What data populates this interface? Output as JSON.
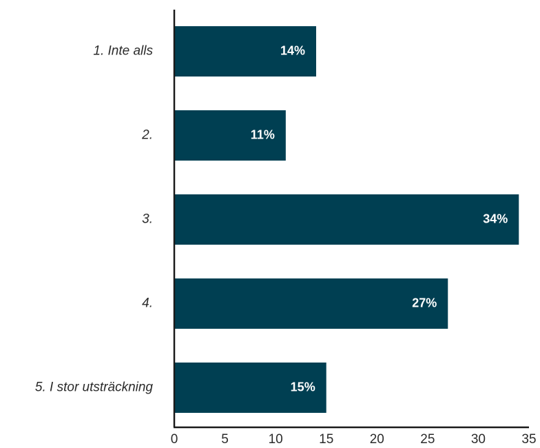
{
  "chart_data": {
    "type": "bar",
    "orientation": "horizontal",
    "categories": [
      "1. Inte alls",
      "2.",
      "3.",
      "4.",
      "5. I stor utsträckning"
    ],
    "values": [
      14,
      11,
      34,
      27,
      15
    ],
    "data_labels": [
      "14%",
      "11%",
      "34%",
      "27%",
      "15%"
    ],
    "xlim": [
      0,
      35
    ],
    "x_ticks": [
      "0",
      "5",
      "10",
      "15",
      "20",
      "25",
      "30",
      "35"
    ],
    "grid": false,
    "legend": "none",
    "bar_color": "#003f52"
  }
}
